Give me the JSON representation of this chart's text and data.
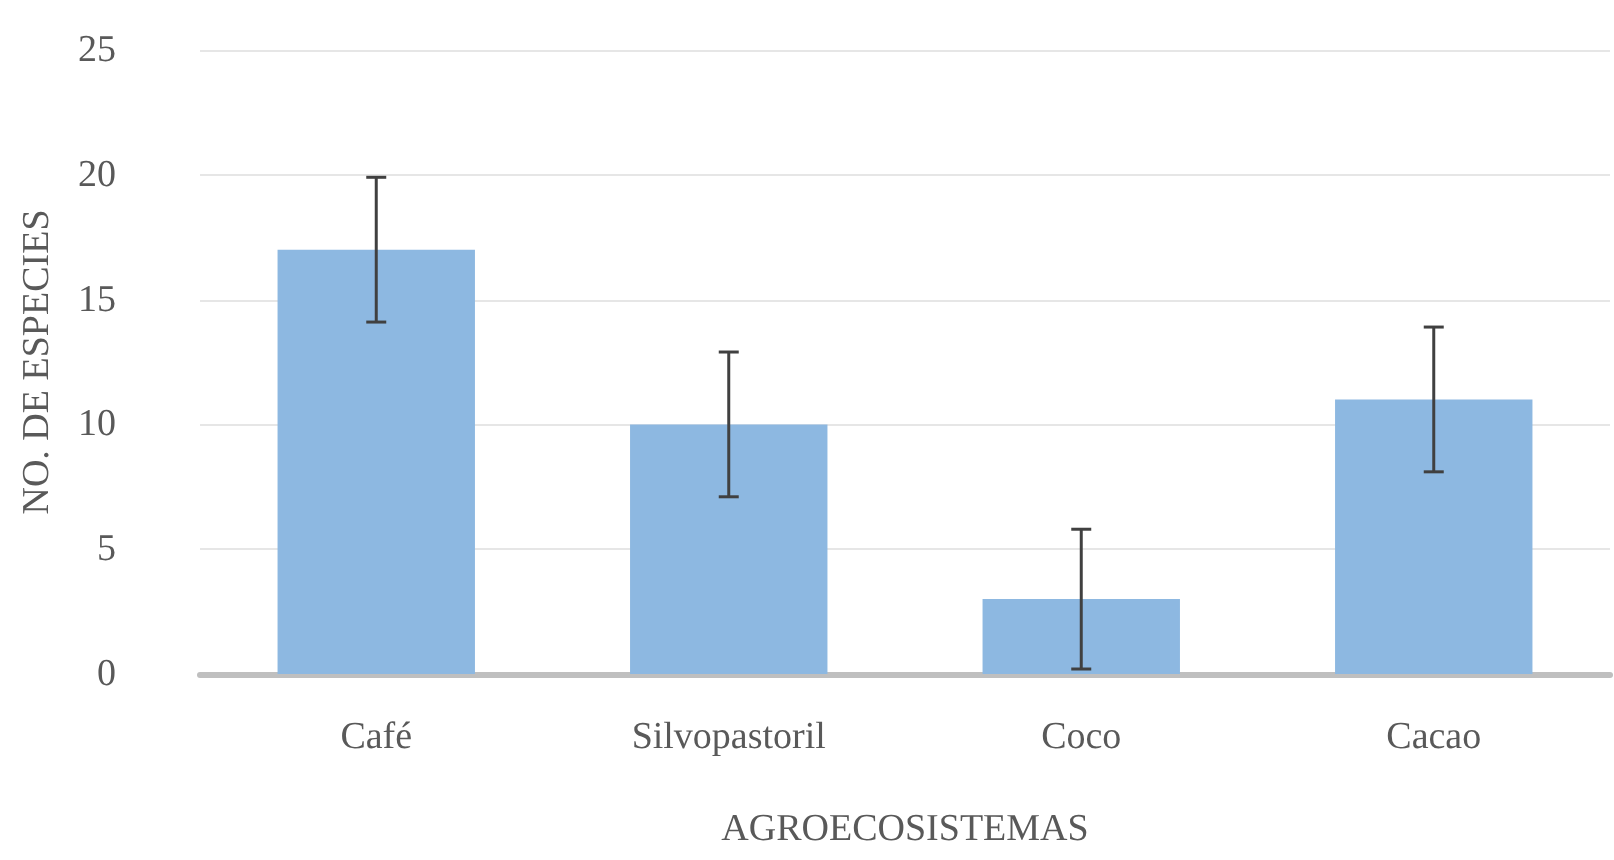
{
  "chart_data": {
    "type": "bar",
    "xlabel": "AGROECOSISTEMAS",
    "ylabel": "NO. DE ESPECIES",
    "categories": [
      "Café",
      "Silvopastoril",
      "Coco",
      "Cacao"
    ],
    "values": [
      17,
      10,
      3,
      11
    ],
    "errors": [
      2.9,
      2.9,
      2.8,
      2.9
    ],
    "color": "#8db8e1",
    "ylim": [
      0,
      25
    ],
    "yticks": [
      0,
      5,
      10,
      15,
      20,
      25
    ],
    "grid": "y"
  }
}
